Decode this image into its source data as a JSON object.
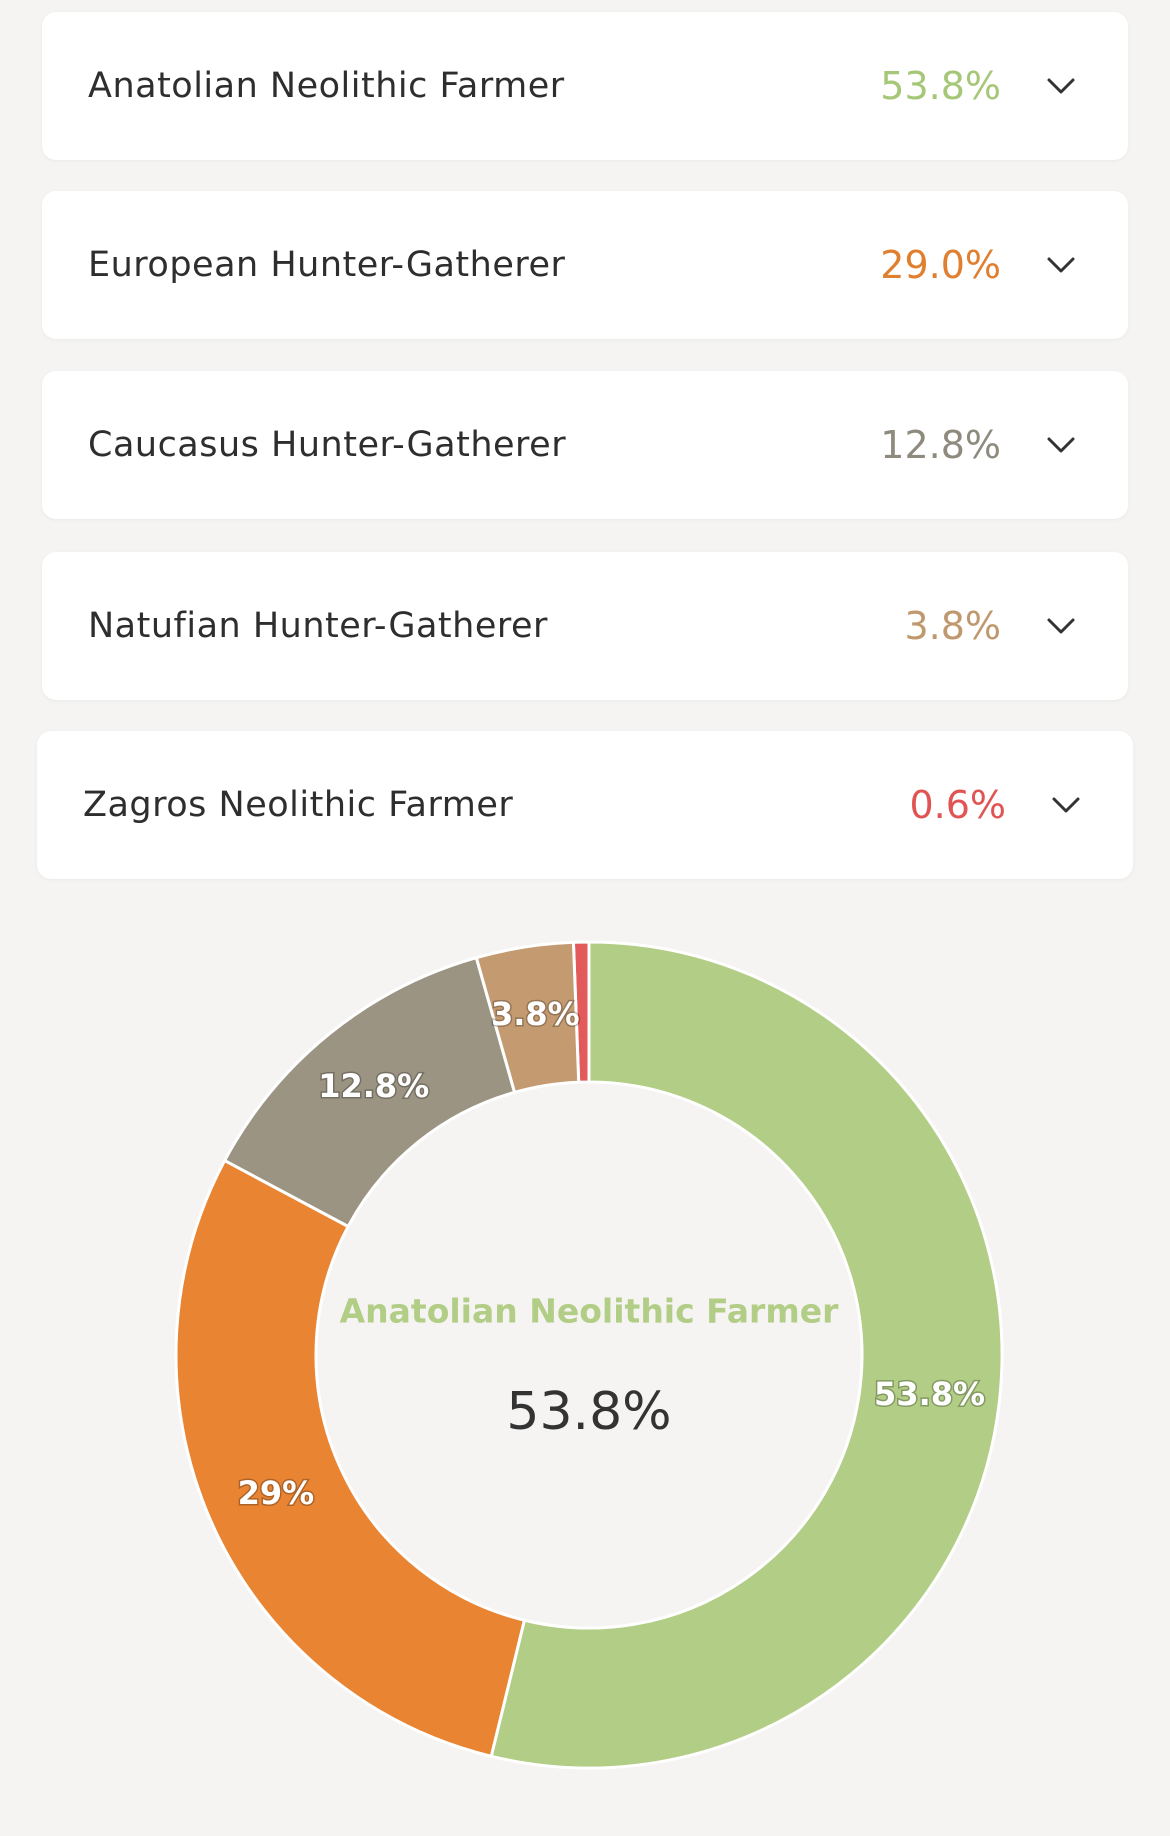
{
  "list": {
    "items": [
      {
        "name": "Anatolian Neolithic Farmer",
        "value": "53.8%",
        "color": "#a6c777"
      },
      {
        "name": "European Hunter-Gatherer",
        "value": "29.0%",
        "color": "#e07f2e"
      },
      {
        "name": "Caucasus Hunter-Gatherer",
        "value": "12.8%",
        "color": "#8f8a7e"
      },
      {
        "name": "Natufian Hunter-Gatherer",
        "value": "3.8%",
        "color": "#c0986e"
      },
      {
        "name": "Zagros Neolithic Farmer",
        "value": "0.6%",
        "color": "#e05454"
      }
    ]
  },
  "chart_data": {
    "type": "donut",
    "categories": [
      "Anatolian Neolithic Farmer",
      "European Hunter-Gatherer",
      "Caucasus Hunter-Gatherer",
      "Natufian Hunter-Gatherer",
      "Zagros Neolithic Farmer"
    ],
    "values": [
      53.8,
      29,
      12.8,
      3.8,
      0.6
    ],
    "value_labels": [
      "53.8%",
      "29%",
      "12.8%",
      "3.8%",
      null
    ],
    "colors": [
      "#b2cd85",
      "#e98433",
      "#9b9483",
      "#c49b71",
      "#e25a5a"
    ]
  }
}
